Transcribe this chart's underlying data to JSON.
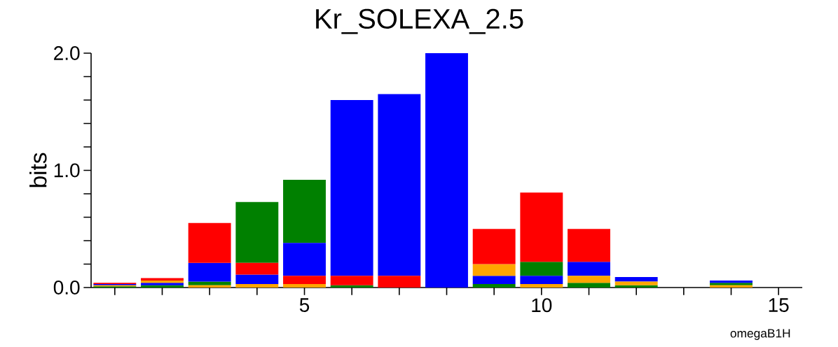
{
  "chart_data": {
    "type": "bar",
    "title": "Kr_SOLEXA_2.5",
    "ylabel": "bits",
    "annotations": [
      "omegaB1H"
    ],
    "x": [
      1,
      2,
      3,
      4,
      5,
      6,
      7,
      8,
      9,
      10,
      11,
      12,
      13,
      14
    ],
    "xlim": [
      0.5,
      15.5
    ],
    "ylim": [
      0,
      2.0
    ],
    "xticks": [
      {
        "value": 1,
        "label": null
      },
      {
        "value": 2,
        "label": null
      },
      {
        "value": 3,
        "label": null
      },
      {
        "value": 4,
        "label": null
      },
      5,
      {
        "value": 6,
        "label": null
      },
      {
        "value": 7,
        "label": null
      },
      {
        "value": 8,
        "label": null
      },
      {
        "value": 9,
        "label": null
      },
      10,
      {
        "value": 11,
        "label": null
      },
      {
        "value": 12,
        "label": null
      },
      {
        "value": 13,
        "label": null
      },
      {
        "value": 14,
        "label": null
      },
      15
    ],
    "yticks": [
      {
        "value": 0,
        "label": "0.0"
      },
      {
        "value": 0.2,
        "label": null
      },
      {
        "value": 0.4,
        "label": null
      },
      {
        "value": 0.6,
        "label": null
      },
      {
        "value": 0.8,
        "label": null
      },
      {
        "value": 1.0,
        "label": "1.0"
      },
      {
        "value": 1.2,
        "label": null
      },
      {
        "value": 1.4,
        "label": null
      },
      {
        "value": 1.6,
        "label": null
      },
      {
        "value": 1.8,
        "label": null
      },
      {
        "value": 2.0,
        "label": "2.0"
      }
    ],
    "series": [
      {
        "color": "#008000",
        "values": [
          0.01,
          0.02,
          0.03,
          0.52,
          0.54,
          0.02,
          null,
          null,
          0.03,
          0.12,
          0.04,
          0.02,
          null,
          0.02
        ],
        "base": [
          0,
          0,
          0.02,
          0.21,
          0.38,
          0,
          null,
          null,
          0,
          0.1,
          0,
          0,
          null,
          0.02
        ]
      },
      {
        "color": "#0000ff",
        "values": [
          0.01,
          0.02,
          0.16,
          0.08,
          0.28,
          1.5,
          1.55,
          2.0,
          0.07,
          0.07,
          0.12,
          0.04,
          null,
          0.02
        ],
        "base": [
          0.02,
          0.02,
          0.05,
          0.03,
          0.1,
          0.1,
          0.1,
          0,
          0.03,
          0.03,
          0.1,
          0.05,
          null,
          0.04
        ]
      },
      {
        "color": "#ffa500",
        "values": [
          0.01,
          0.02,
          0.02,
          0.03,
          0.03,
          null,
          null,
          null,
          0.1,
          0.03,
          0.06,
          0.03,
          null,
          0.02
        ],
        "base": [
          0.01,
          0.04,
          0,
          0,
          0,
          null,
          null,
          null,
          0.1,
          0,
          0.04,
          0.02,
          null,
          0
        ]
      },
      {
        "color": "#ff0000",
        "values": [
          0.01,
          0.02,
          0.34,
          0.1,
          0.07,
          0.08,
          0.1,
          null,
          0.3,
          0.59,
          0.28,
          null,
          null,
          null
        ],
        "base": [
          0.03,
          0.06,
          0.21,
          0.11,
          0.03,
          0.02,
          0,
          null,
          0.2,
          0.22,
          0.22,
          null,
          null,
          null
        ]
      }
    ]
  }
}
